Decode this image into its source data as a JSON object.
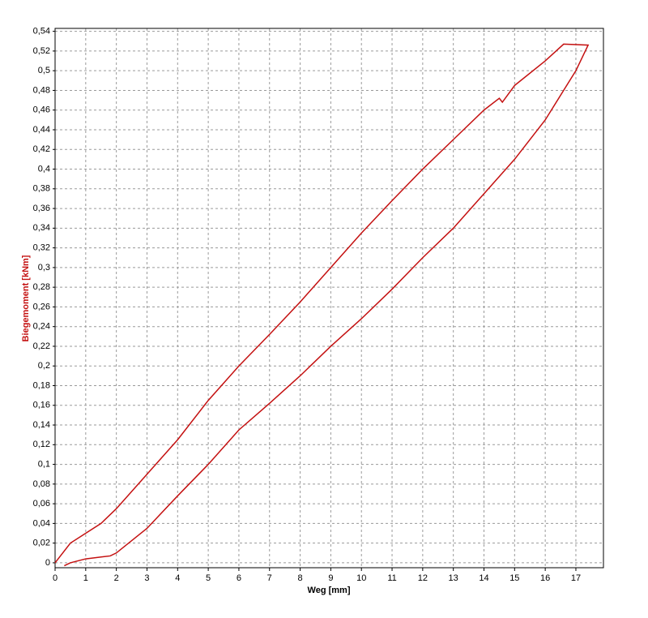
{
  "chart_data": {
    "type": "line",
    "x_label": "Weg [mm]",
    "y_label": "Biegemoment [kNm]",
    "xlim": [
      0,
      17.9
    ],
    "ylim": [
      -0.005,
      0.543
    ],
    "xticks": [
      0,
      1,
      2,
      3,
      4,
      5,
      6,
      7,
      8,
      9,
      10,
      11,
      12,
      13,
      14,
      15,
      16,
      17
    ],
    "yticks": [
      0,
      {
        "value": 0.02,
        "label": "0,02"
      },
      {
        "value": 0.04,
        "label": "0,04"
      },
      {
        "value": 0.06,
        "label": "0,06"
      },
      {
        "value": 0.08,
        "label": "0,08"
      },
      {
        "value": 0.1,
        "label": "0,1"
      },
      {
        "value": 0.12,
        "label": "0,12"
      },
      {
        "value": 0.14,
        "label": "0,14"
      },
      {
        "value": 0.16,
        "label": "0,16"
      },
      {
        "value": 0.18,
        "label": "0,18"
      },
      {
        "value": 0.2,
        "label": "0,2"
      },
      {
        "value": 0.22,
        "label": "0,22"
      },
      {
        "value": 0.24,
        "label": "0,24"
      },
      {
        "value": 0.26,
        "label": "0,26"
      },
      {
        "value": 0.28,
        "label": "0,28"
      },
      {
        "value": 0.3,
        "label": "0,3"
      },
      {
        "value": 0.32,
        "label": "0,32"
      },
      {
        "value": 0.34,
        "label": "0,34"
      },
      {
        "value": 0.36,
        "label": "0,36"
      },
      {
        "value": 0.38,
        "label": "0,38"
      },
      {
        "value": 0.4,
        "label": "0,4"
      },
      {
        "value": 0.42,
        "label": "0,42"
      },
      {
        "value": 0.44,
        "label": "0,44"
      },
      {
        "value": 0.46,
        "label": "0,46"
      },
      {
        "value": 0.48,
        "label": "0,48"
      },
      {
        "value": 0.5,
        "label": "0,5"
      },
      {
        "value": 0.52,
        "label": "0,52"
      },
      {
        "value": 0.54,
        "label": "0,54"
      }
    ],
    "grid": true,
    "series": [
      {
        "color": "#c41010",
        "x": [
          0,
          0.5,
          1,
          1.5,
          2,
          3,
          4,
          5,
          6,
          7,
          8,
          9,
          10,
          11,
          12,
          13,
          14,
          14.5,
          14.6,
          15,
          16,
          16.6,
          17.4,
          17,
          16,
          15,
          14,
          13,
          12,
          11,
          10,
          9,
          8,
          7,
          6,
          5,
          4,
          3,
          2,
          1.8,
          1,
          0.5,
          0.3
        ],
        "values": [
          0,
          0.02,
          0.03,
          0.04,
          0.055,
          0.09,
          0.125,
          0.165,
          0.2,
          0.232,
          0.265,
          0.3,
          0.335,
          0.368,
          0.4,
          0.43,
          0.46,
          0.472,
          0.468,
          0.485,
          0.51,
          0.527,
          0.526,
          0.5,
          0.45,
          0.41,
          0.375,
          0.34,
          0.31,
          0.278,
          0.248,
          0.22,
          0.19,
          0.162,
          0.135,
          0.1,
          0.068,
          0.035,
          0.01,
          0.007,
          0.004,
          0,
          -0.003
        ]
      }
    ]
  }
}
